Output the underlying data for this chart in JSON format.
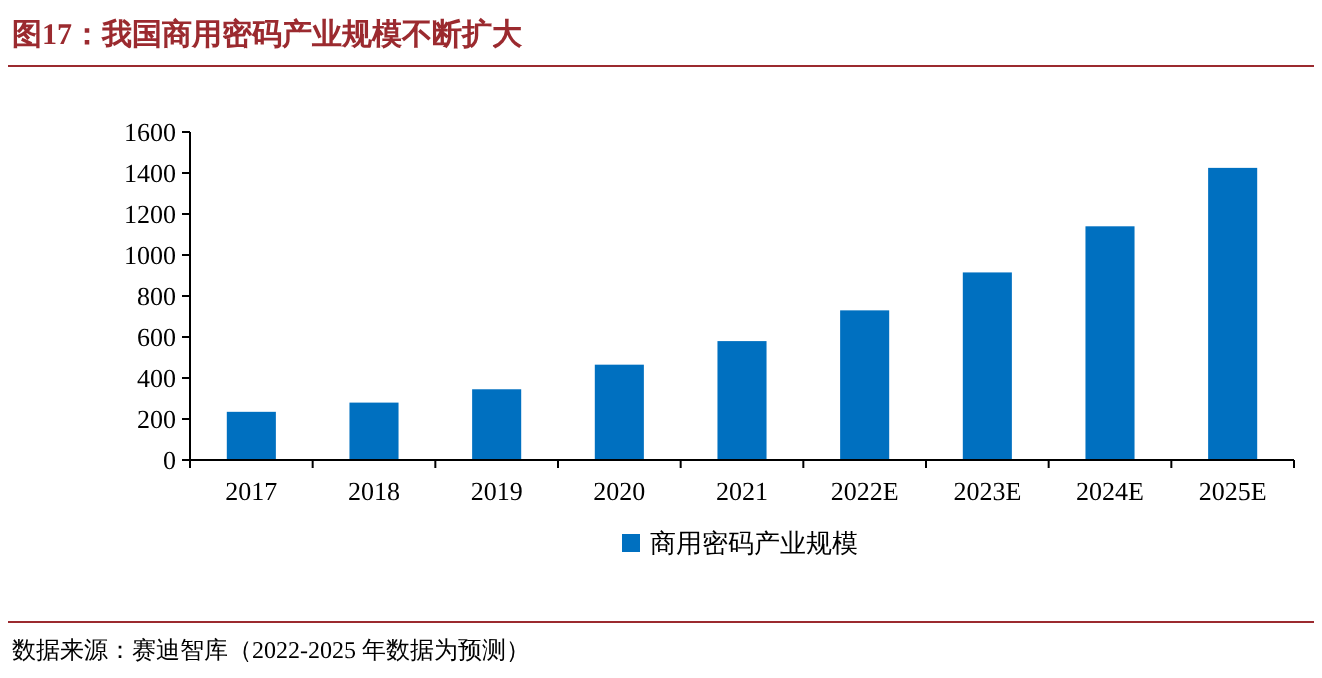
{
  "chart_data": {
    "type": "bar",
    "title": "图17：我国商用密码产业规模不断扩大",
    "categories": [
      "2017",
      "2018",
      "2019",
      "2020",
      "2021",
      "2022E",
      "2023E",
      "2024E",
      "2025E"
    ],
    "series": [
      {
        "name": "商用密码产业规模",
        "color": "#0070c0",
        "values": [
          235,
          280,
          345,
          465,
          580,
          730,
          915,
          1140,
          1425
        ]
      }
    ],
    "ylim": [
      0,
      1600
    ],
    "yticks": [
      0,
      200,
      400,
      600,
      800,
      1000,
      1200,
      1400,
      1600
    ],
    "legend": "bottom",
    "annotations": [
      "数据来源：赛迪智库（2022-2025 年数据为预测）"
    ]
  }
}
